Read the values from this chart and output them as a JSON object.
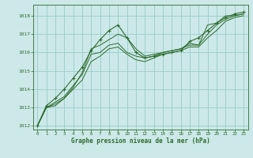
{
  "title": "Graphe pression niveau de la mer (hPa)",
  "background_color": "#cce8e8",
  "grid_color": "#99cccc",
  "line_color": "#2d6b2d",
  "xlim": [
    -0.5,
    23.5
  ],
  "ylim": [
    1011.8,
    1018.6
  ],
  "yticks": [
    1012,
    1013,
    1014,
    1015,
    1016,
    1017,
    1018
  ],
  "xticks": [
    0,
    1,
    2,
    3,
    4,
    5,
    6,
    7,
    8,
    9,
    10,
    11,
    12,
    13,
    14,
    15,
    16,
    17,
    18,
    19,
    20,
    21,
    22,
    23
  ],
  "series": [
    [
      1012.0,
      1013.0,
      1013.1,
      1013.5,
      1014.1,
      1014.9,
      1016.2,
      1016.4,
      1016.7,
      1017.0,
      1016.8,
      1016.2,
      1015.8,
      1015.9,
      1016.0,
      1016.1,
      1016.2,
      1016.5,
      1016.4,
      1017.5,
      1017.6,
      1018.0,
      1018.0,
      1018.1
    ],
    [
      1012.0,
      1013.0,
      1013.3,
      1013.6,
      1014.2,
      1014.8,
      1015.9,
      1016.0,
      1016.4,
      1016.5,
      1016.0,
      1015.8,
      1015.7,
      1015.8,
      1016.0,
      1016.1,
      1016.2,
      1016.4,
      1016.4,
      1017.0,
      1017.5,
      1017.8,
      1018.0,
      1018.1
    ],
    [
      1012.0,
      1013.0,
      1013.2,
      1013.5,
      1014.0,
      1014.5,
      1015.5,
      1015.8,
      1016.2,
      1016.3,
      1015.9,
      1015.6,
      1015.5,
      1015.7,
      1015.9,
      1016.0,
      1016.1,
      1016.3,
      1016.3,
      1016.8,
      1017.2,
      1017.7,
      1017.9,
      1018.0
    ],
    [
      1012.0,
      1013.1,
      1013.5,
      1014.0,
      1014.6,
      1015.2,
      1016.1,
      1016.7,
      1017.2,
      1017.5,
      1016.8,
      1016.0,
      1015.7,
      1015.8,
      1015.9,
      1016.0,
      1016.1,
      1016.6,
      1016.8,
      1017.2,
      1017.6,
      1017.9,
      1018.1,
      1018.2
    ]
  ]
}
